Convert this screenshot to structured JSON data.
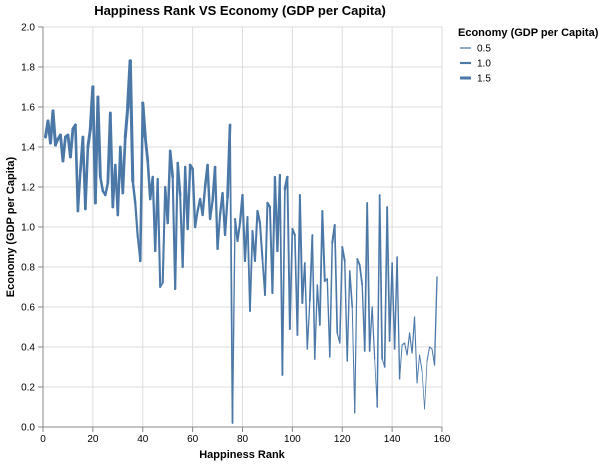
{
  "chart_data": {
    "type": "line",
    "title": "Happiness Rank VS Economy (GDP per Capita)",
    "xlabel": "Happiness Rank",
    "ylabel": "Economy (GDP per Capita)",
    "xlim": [
      0,
      160
    ],
    "ylim": [
      0,
      2.0
    ],
    "x_ticks": [
      "0",
      "20",
      "40",
      "60",
      "80",
      "100",
      "120",
      "140",
      "160"
    ],
    "y_ticks": [
      "0.0",
      "0.2",
      "0.4",
      "0.6",
      "0.8",
      "1.0",
      "1.2",
      "1.4",
      "1.6",
      "1.8",
      "2.0"
    ],
    "grid": true,
    "color": "#4c78a8",
    "stroke_width_encoding": "Economy (GDP per Capita)",
    "legend": {
      "title": "Economy (GDP per Capita)",
      "position": "top-right",
      "entries": [
        "0.5",
        "1.0",
        "1.5"
      ]
    },
    "series": [
      {
        "x": [
          1,
          2,
          3,
          4,
          5,
          6,
          7,
          8,
          9,
          10,
          11,
          12,
          13,
          14,
          15,
          16,
          17,
          18,
          19,
          20,
          21,
          22,
          23,
          24,
          25,
          26,
          27,
          28,
          29,
          30,
          31,
          32,
          33,
          34,
          35,
          36,
          37,
          38,
          39,
          40,
          41,
          42,
          43,
          44,
          45,
          46,
          47,
          48,
          49,
          50,
          51,
          52,
          53,
          54,
          55,
          56,
          57,
          58,
          59,
          60,
          61,
          62,
          63,
          64,
          65,
          66,
          67,
          68,
          69,
          70,
          71,
          72,
          73,
          74,
          75,
          76,
          77,
          78,
          79,
          80,
          81,
          82,
          83,
          84,
          85,
          86,
          87,
          88,
          89,
          90,
          91,
          92,
          93,
          94,
          95,
          96,
          97,
          98,
          99,
          100,
          101,
          102,
          103,
          104,
          105,
          106,
          107,
          108,
          109,
          110,
          111,
          112,
          113,
          114,
          115,
          116,
          117,
          118,
          119,
          120,
          121,
          122,
          123,
          124,
          125,
          126,
          127,
          128,
          129,
          130,
          131,
          132,
          133,
          134,
          135,
          136,
          137,
          138,
          139,
          140,
          141,
          142,
          143,
          144,
          145,
          146,
          147,
          148,
          149,
          150,
          151,
          152,
          153,
          154,
          155,
          156,
          157,
          158
        ],
        "y": [
          1.45,
          1.53,
          1.42,
          1.58,
          1.41,
          1.44,
          1.46,
          1.33,
          1.45,
          1.46,
          1.35,
          1.49,
          1.51,
          1.08,
          1.28,
          1.45,
          1.09,
          1.4,
          1.49,
          1.7,
          1.12,
          1.65,
          1.25,
          1.18,
          1.16,
          1.22,
          1.57,
          1.1,
          1.31,
          1.06,
          1.4,
          1.17,
          1.45,
          1.6,
          1.83,
          1.23,
          1.12,
          0.95,
          0.83,
          1.62,
          1.45,
          1.33,
          1.14,
          1.25,
          0.88,
          1.24,
          0.7,
          0.72,
          1.2,
          1.02,
          1.38,
          1.25,
          0.69,
          1.32,
          1.16,
          0.8,
          1.3,
          0.99,
          1.31,
          1.29,
          1.0,
          1.08,
          1.14,
          1.06,
          1.2,
          1.31,
          1.04,
          1.13,
          1.3,
          0.89,
          1.06,
          1.17,
          0.96,
          1.15,
          1.51,
          0.02,
          1.04,
          0.93,
          1.02,
          1.16,
          0.83,
          1.05,
          0.58,
          0.98,
          0.83,
          1.08,
          1.02,
          0.84,
          0.66,
          1.12,
          1.1,
          0.67,
          1.25,
          0.88,
          1.26,
          0.26,
          1.19,
          1.25,
          0.49,
          0.99,
          0.96,
          0.46,
          1.16,
          0.62,
          0.82,
          0.39,
          0.63,
          0.96,
          0.34,
          0.71,
          0.51,
          1.08,
          0.73,
          0.74,
          0.35,
          0.92,
          1.01,
          0.47,
          0.42,
          0.9,
          0.83,
          0.33,
          0.78,
          0.6,
          0.07,
          0.84,
          0.81,
          0.71,
          0.38,
          1.12,
          0.38,
          0.6,
          0.34,
          0.1,
          1.16,
          0.34,
          0.3,
          1.1,
          0.43,
          0.82,
          0.39,
          0.85,
          0.24,
          0.41,
          0.42,
          0.36,
          0.47,
          0.37,
          0.55,
          0.22,
          0.36,
          0.28,
          0.09,
          0.33,
          0.4,
          0.39,
          0.31,
          0.75
        ]
      }
    ]
  }
}
